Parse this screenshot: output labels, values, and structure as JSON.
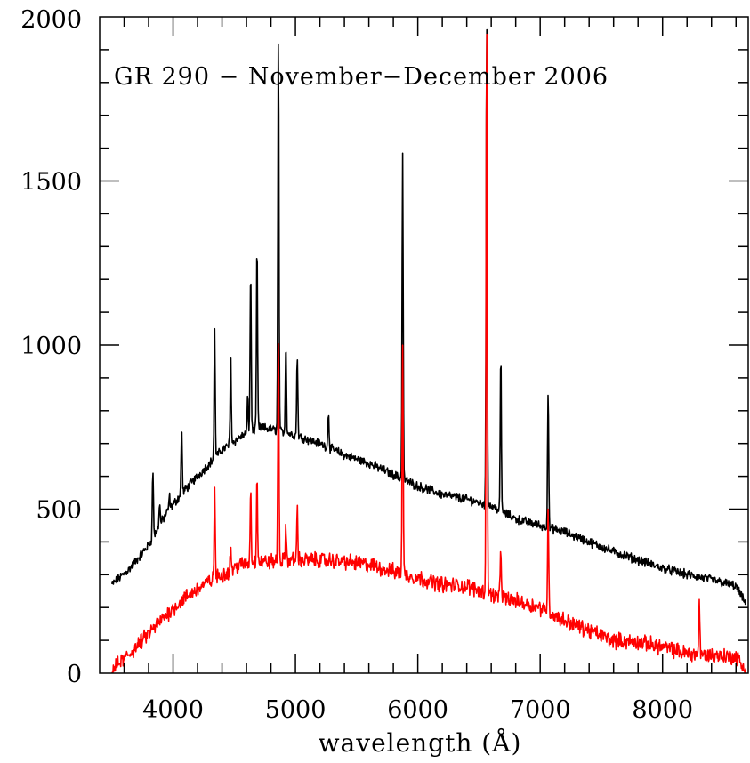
{
  "chart_data": {
    "type": "line",
    "title": "GR 290 − November−December 2006",
    "xlabel": "wavelength (Å)",
    "ylabel": "",
    "xlim": [
      3400,
      8700
    ],
    "ylim": [
      0,
      2000
    ],
    "xticks": [
      4000,
      5000,
      6000,
      7000,
      8000
    ],
    "xtick_labels": [
      "4000",
      "5000",
      "6000",
      "7000",
      "8000"
    ],
    "yticks": [
      0,
      500,
      1000,
      1500,
      2000
    ],
    "ytick_labels": [
      "0",
      "500",
      "1000",
      "1500",
      "2000"
    ],
    "grid": false,
    "series": [
      {
        "color": "#000000",
        "continuum": [
          [
            3500,
            270
          ],
          [
            3650,
            320
          ],
          [
            3800,
            390
          ],
          [
            3950,
            490
          ],
          [
            4100,
            560
          ],
          [
            4250,
            620
          ],
          [
            4400,
            680
          ],
          [
            4550,
            720
          ],
          [
            4700,
            750
          ],
          [
            4850,
            740
          ],
          [
            5000,
            725
          ],
          [
            5200,
            700
          ],
          [
            5400,
            665
          ],
          [
            5600,
            640
          ],
          [
            5800,
            605
          ],
          [
            6000,
            570
          ],
          [
            6200,
            545
          ],
          [
            6400,
            530
          ],
          [
            6600,
            510
          ],
          [
            6800,
            470
          ],
          [
            7000,
            450
          ],
          [
            7200,
            430
          ],
          [
            7400,
            400
          ],
          [
            7600,
            370
          ],
          [
            7800,
            345
          ],
          [
            8000,
            320
          ],
          [
            8200,
            300
          ],
          [
            8400,
            285
          ],
          [
            8600,
            265
          ],
          [
            8680,
            210
          ]
        ],
        "lines": [
          [
            3835,
            620
          ],
          [
            3890,
            520
          ],
          [
            3970,
            540
          ],
          [
            4070,
            750
          ],
          [
            4340,
            1040
          ],
          [
            4471,
            960
          ],
          [
            4610,
            840
          ],
          [
            4634,
            1230
          ],
          [
            4686,
            1300
          ],
          [
            4861,
            1940
          ],
          [
            4922,
            1010
          ],
          [
            5015,
            970
          ],
          [
            5270,
            800
          ],
          [
            5876,
            1580
          ],
          [
            6563,
            2000
          ],
          [
            6678,
            970
          ],
          [
            7065,
            870
          ]
        ]
      },
      {
        "color": "#ff0000",
        "continuum": [
          [
            3500,
            10
          ],
          [
            3650,
            60
          ],
          [
            3800,
            120
          ],
          [
            3950,
            180
          ],
          [
            4100,
            230
          ],
          [
            4250,
            270
          ],
          [
            4400,
            300
          ],
          [
            4550,
            330
          ],
          [
            4700,
            340
          ],
          [
            4850,
            340
          ],
          [
            5000,
            345
          ],
          [
            5200,
            345
          ],
          [
            5400,
            340
          ],
          [
            5600,
            330
          ],
          [
            5800,
            310
          ],
          [
            6000,
            290
          ],
          [
            6200,
            270
          ],
          [
            6400,
            265
          ],
          [
            6600,
            240
          ],
          [
            6800,
            220
          ],
          [
            7000,
            200
          ],
          [
            7200,
            160
          ],
          [
            7400,
            130
          ],
          [
            7600,
            100
          ],
          [
            7800,
            95
          ],
          [
            8000,
            80
          ],
          [
            8200,
            60
          ],
          [
            8400,
            55
          ],
          [
            8600,
            50
          ],
          [
            8680,
            10
          ]
        ],
        "lines": [
          [
            4340,
            560
          ],
          [
            4471,
            380
          ],
          [
            4634,
            560
          ],
          [
            4686,
            610
          ],
          [
            4861,
            1010
          ],
          [
            4922,
            450
          ],
          [
            5015,
            500
          ],
          [
            5876,
            1010
          ],
          [
            6563,
            2000
          ],
          [
            6678,
            380
          ],
          [
            7065,
            500
          ],
          [
            8300,
            220
          ]
        ]
      }
    ]
  }
}
